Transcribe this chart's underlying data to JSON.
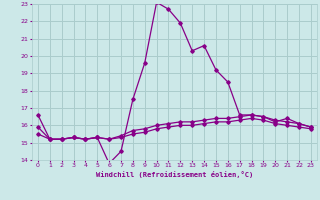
{
  "xlabel": "Windchill (Refroidissement éolien,°C)",
  "bg_color": "#cce8e8",
  "grid_color": "#aacccc",
  "line_color": "#880088",
  "xlim": [
    -0.5,
    23.5
  ],
  "ylim": [
    14,
    23
  ],
  "yticks": [
    14,
    15,
    16,
    17,
    18,
    19,
    20,
    21,
    22,
    23
  ],
  "xticks": [
    0,
    1,
    2,
    3,
    4,
    5,
    6,
    7,
    8,
    9,
    10,
    11,
    12,
    13,
    14,
    15,
    16,
    17,
    18,
    19,
    20,
    21,
    22,
    23
  ],
  "series1_x": [
    0,
    1,
    2,
    3,
    4,
    5,
    6,
    7,
    8,
    9,
    10,
    11,
    12,
    13,
    14,
    15,
    16,
    17,
    18,
    19,
    20,
    21,
    22,
    23
  ],
  "series1_y": [
    16.6,
    15.2,
    15.2,
    15.3,
    15.2,
    15.3,
    13.8,
    14.5,
    17.5,
    19.6,
    23.1,
    22.7,
    21.9,
    20.3,
    20.6,
    19.2,
    18.5,
    16.6,
    16.6,
    16.5,
    16.2,
    16.4,
    16.1,
    15.9
  ],
  "series2_x": [
    0,
    1,
    2,
    3,
    4,
    5,
    6,
    7,
    8,
    9,
    10,
    11,
    12,
    13,
    14,
    15,
    16,
    17,
    18,
    19,
    20,
    21,
    22,
    23
  ],
  "series2_y": [
    15.9,
    15.2,
    15.2,
    15.3,
    15.2,
    15.3,
    15.2,
    15.4,
    15.7,
    15.8,
    16.0,
    16.1,
    16.2,
    16.2,
    16.3,
    16.4,
    16.4,
    16.5,
    16.6,
    16.5,
    16.3,
    16.2,
    16.1,
    15.9
  ],
  "series3_x": [
    0,
    1,
    2,
    3,
    4,
    5,
    6,
    7,
    8,
    9,
    10,
    11,
    12,
    13,
    14,
    15,
    16,
    17,
    18,
    19,
    20,
    21,
    22,
    23
  ],
  "series3_y": [
    15.5,
    15.2,
    15.2,
    15.3,
    15.2,
    15.3,
    15.2,
    15.3,
    15.5,
    15.6,
    15.8,
    15.9,
    16.0,
    16.0,
    16.1,
    16.2,
    16.2,
    16.3,
    16.4,
    16.3,
    16.1,
    16.0,
    15.9,
    15.8
  ]
}
